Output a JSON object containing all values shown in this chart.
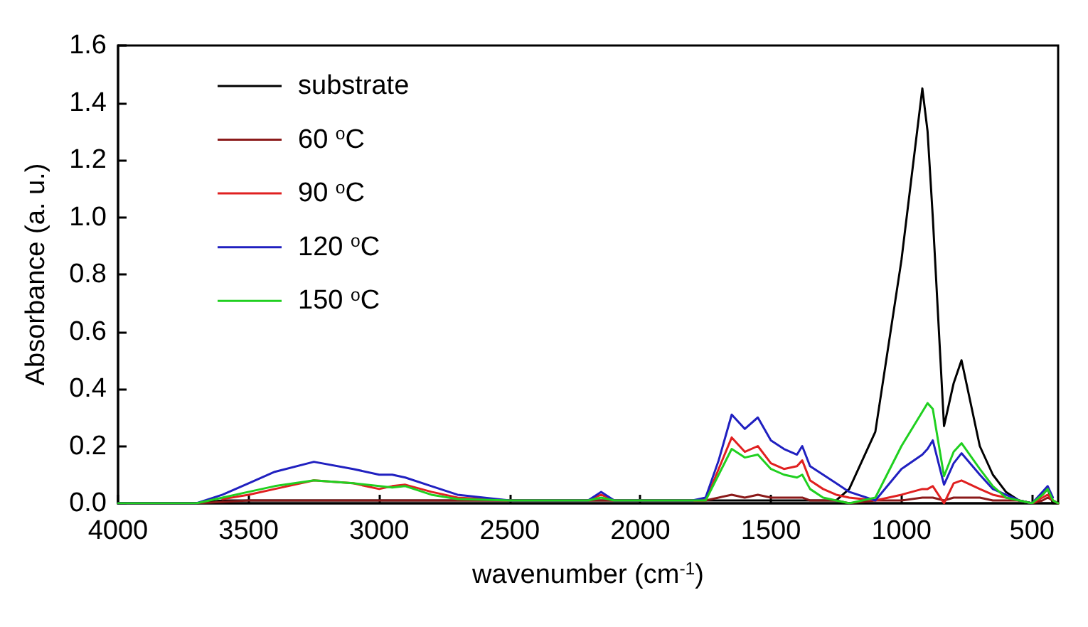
{
  "chart_data": {
    "type": "line",
    "xlabel": "wavenumber (cm$^{-1}$)",
    "ylabel": "Absorbance (a. u.)",
    "x": [
      4000,
      3700,
      3600,
      3500,
      3400,
      3250,
      3100,
      3000,
      2950,
      2900,
      2800,
      2700,
      2500,
      2300,
      2200,
      2150,
      2100,
      1800,
      1750,
      1700,
      1650,
      1600,
      1550,
      1500,
      1450,
      1400,
      1380,
      1350,
      1300,
      1250,
      1200,
      1100,
      1000,
      920,
      900,
      880,
      837,
      800,
      770,
      700,
      650,
      600,
      550,
      500,
      460,
      440,
      420,
      400
    ],
    "series": [
      {
        "name": "substrate",
        "color": "#000000",
        "values": [
          0,
          0,
          0.01,
          0.01,
          0.01,
          0.01,
          0.01,
          0.01,
          0.01,
          0.01,
          0.01,
          0.01,
          0.01,
          0.01,
          0.01,
          0.01,
          0.01,
          0.01,
          0.01,
          0.01,
          0.01,
          0.01,
          0.01,
          0.01,
          0.01,
          0.01,
          0.01,
          0.01,
          0.01,
          0.01,
          0.05,
          0.25,
          0.85,
          1.45,
          1.3,
          1.0,
          0.27,
          0.42,
          0.5,
          0.2,
          0.1,
          0.04,
          0.01,
          0,
          0.03,
          0.05,
          0,
          0
        ]
      },
      {
        "name": "60 $^{o}$C",
        "color": "#8b1a1a",
        "values": [
          0,
          0,
          0.005,
          0.01,
          0.01,
          0.01,
          0.01,
          0.01,
          0.01,
          0.01,
          0.01,
          0.01,
          0.01,
          0.01,
          0.01,
          0.01,
          0.01,
          0.01,
          0.01,
          0.02,
          0.03,
          0.02,
          0.03,
          0.02,
          0.02,
          0.02,
          0.02,
          0.01,
          0.01,
          0.01,
          0,
          0.01,
          0.01,
          0.02,
          0.02,
          0.02,
          0.01,
          0.02,
          0.02,
          0.02,
          0.01,
          0.01,
          0.01,
          0,
          0.01,
          0.02,
          0.01,
          0
        ]
      },
      {
        "name": "90 $^{o}$C",
        "color": "#e02020",
        "values": [
          null,
          null,
          0.015,
          0.03,
          0.05,
          0.08,
          0.07,
          0.05,
          0.06,
          0.065,
          0.04,
          0.02,
          0.01,
          0.01,
          0.01,
          0.03,
          0.01,
          0.01,
          0.01,
          0.12,
          0.23,
          0.18,
          0.2,
          0.14,
          0.12,
          0.13,
          0.15,
          0.08,
          0.05,
          0.03,
          0.02,
          0.01,
          0.03,
          0.05,
          0.05,
          0.06,
          0,
          0.07,
          0.08,
          0.05,
          0.03,
          0.02,
          0.01,
          0,
          0.02,
          0.03,
          0.01,
          0
        ]
      },
      {
        "name": "120 $^{o}$C",
        "color": "#2020c0",
        "values": [
          0,
          0,
          0.03,
          0.07,
          0.11,
          0.145,
          0.12,
          0.1,
          0.1,
          0.09,
          0.06,
          0.03,
          0.01,
          0.01,
          0.01,
          0.04,
          0.01,
          0.01,
          0.02,
          0.15,
          0.31,
          0.26,
          0.3,
          0.22,
          0.19,
          0.17,
          0.2,
          0.13,
          0.1,
          0.07,
          0.04,
          0.01,
          0.12,
          0.17,
          0.19,
          0.22,
          0.065,
          0.14,
          0.175,
          0.1,
          0.05,
          0.03,
          0.01,
          0,
          0.04,
          0.06,
          0.02,
          null
        ]
      },
      {
        "name": "150 $^{o}$C",
        "color": "#20d020",
        "values": [
          0,
          0,
          0.02,
          0.04,
          0.06,
          0.08,
          0.07,
          0.06,
          0.055,
          0.06,
          0.03,
          0.015,
          0.01,
          0.01,
          0.01,
          0.02,
          0.01,
          0.01,
          0.01,
          0.1,
          0.19,
          0.16,
          0.17,
          0.12,
          0.1,
          0.09,
          0.1,
          0.05,
          0.02,
          0.01,
          0,
          0.02,
          0.2,
          0.32,
          0.35,
          0.33,
          0.095,
          0.18,
          0.21,
          0.12,
          0.06,
          0.02,
          0.01,
          0,
          0.03,
          0.05,
          0.01,
          0
        ]
      }
    ],
    "xlim": [
      4000,
      400
    ],
    "xticks": [
      4000,
      3500,
      3000,
      2500,
      2000,
      1500,
      1000,
      500
    ],
    "ylim": [
      0,
      1.6
    ],
    "yticks": [
      {
        "value": 0,
        "label": "0.0"
      },
      {
        "value": 0.2,
        "label": "0.2"
      },
      {
        "value": 0.4,
        "label": "0.4"
      },
      {
        "value": 0.6,
        "label": "0.6"
      },
      {
        "value": 0.8,
        "label": "0.8"
      },
      {
        "value": 1.0,
        "label": "1.0"
      },
      {
        "value": 1.2,
        "label": "1.2"
      },
      {
        "value": 1.4,
        "label": "1.4"
      },
      {
        "value": 1.6,
        "label": "1.6"
      }
    ],
    "legend": "top left",
    "marker": "none",
    "line_style": "solid"
  }
}
